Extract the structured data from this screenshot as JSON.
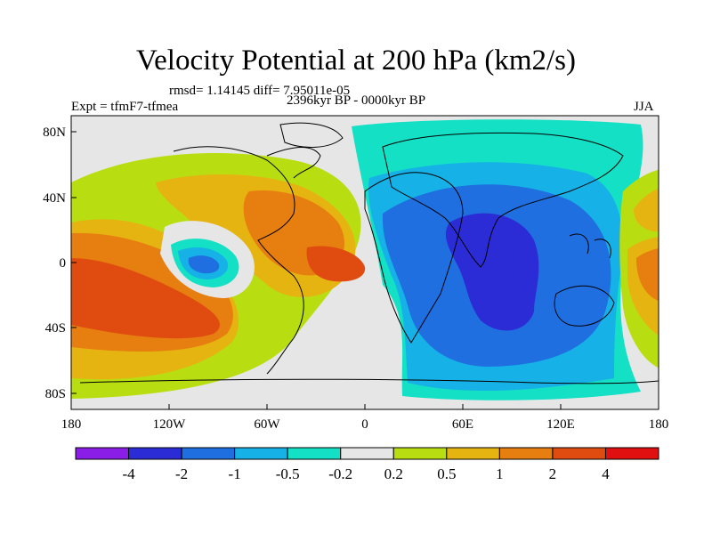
{
  "title": "Velocity Potential at 200 hPa (km2/s)",
  "stats": "rmsd= 1.14145 diff= 7.95011e-05",
  "experiment": "Expt = tfmF7-tfmea",
  "period": "2396kyr BP - 0000kyr BP",
  "season": "JJA",
  "lat_ticks": [
    "80N",
    "40N",
    "0",
    "40S",
    "80S"
  ],
  "lon_ticks": [
    "180",
    "120W",
    "60W",
    "0",
    "60E",
    "120E",
    "180"
  ],
  "colorbar": {
    "colors": [
      "#8a1ee6",
      "#2c2cd6",
      "#1f6fe0",
      "#16b1e6",
      "#13e0c4",
      "#e6e6e6",
      "#b8de12",
      "#e6b410",
      "#e67e10",
      "#e04c10",
      "#e01010"
    ],
    "labels": [
      "-4",
      "-2",
      "-1",
      "-0.5",
      "-0.2",
      "0.2",
      "0.5",
      "1",
      "2",
      "4"
    ]
  }
}
